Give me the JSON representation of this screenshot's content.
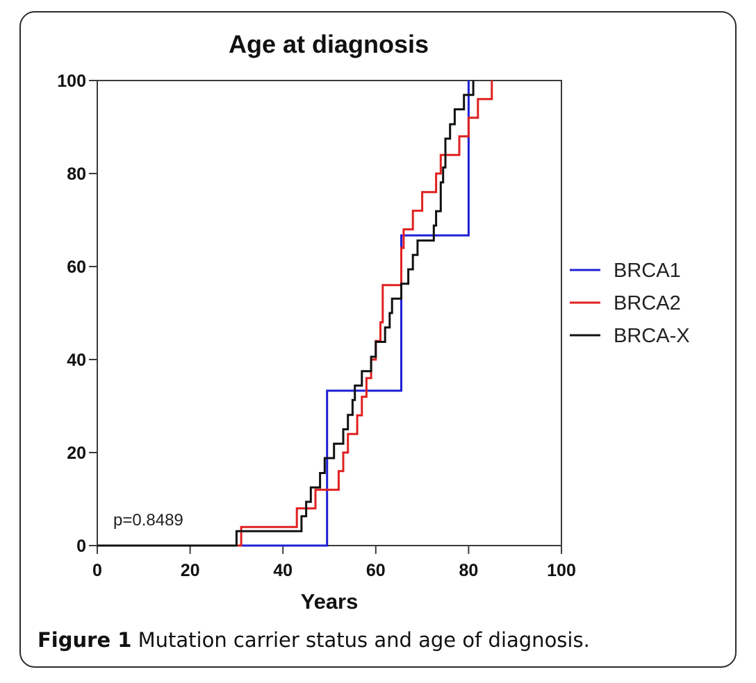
{
  "chart_data": {
    "type": "line",
    "title": "Age at diagnosis",
    "xlabel": "Years",
    "ylabel": "",
    "xlim": [
      0,
      100
    ],
    "ylim": [
      0,
      100
    ],
    "xticks": [
      "0",
      "20",
      "40",
      "60",
      "80",
      "100"
    ],
    "yticks": [
      "0",
      "20",
      "40",
      "60",
      "80",
      "100"
    ],
    "annotation": "p=0.8489",
    "legend_position": "right",
    "grid": false,
    "series": [
      {
        "name": "BRCA1",
        "color": "#1f1fd6",
        "step": true,
        "points": [
          [
            0,
            0
          ],
          [
            49.5,
            0
          ],
          [
            49.5,
            33.3
          ],
          [
            65.5,
            33.3
          ],
          [
            65.5,
            66.7
          ],
          [
            80,
            66.7
          ],
          [
            80,
            100
          ]
        ]
      },
      {
        "name": "BRCA2",
        "color": "#e02020",
        "step": true,
        "points": [
          [
            0,
            0
          ],
          [
            31,
            0
          ],
          [
            31,
            4
          ],
          [
            43,
            4
          ],
          [
            43,
            8
          ],
          [
            47,
            8
          ],
          [
            47,
            12
          ],
          [
            52,
            12
          ],
          [
            52,
            16
          ],
          [
            53,
            16
          ],
          [
            53,
            20
          ],
          [
            54,
            20
          ],
          [
            54,
            24
          ],
          [
            56,
            24
          ],
          [
            56,
            28
          ],
          [
            57,
            28
          ],
          [
            57,
            32
          ],
          [
            58,
            32
          ],
          [
            58,
            36
          ],
          [
            59,
            36
          ],
          [
            59,
            40
          ],
          [
            60,
            40
          ],
          [
            60,
            44
          ],
          [
            61,
            44
          ],
          [
            61,
            48
          ],
          [
            61.5,
            48
          ],
          [
            61.5,
            56
          ],
          [
            65.5,
            56
          ],
          [
            65.5,
            64
          ],
          [
            66,
            64
          ],
          [
            66,
            68
          ],
          [
            68,
            68
          ],
          [
            68,
            72
          ],
          [
            70,
            72
          ],
          [
            70,
            76
          ],
          [
            73,
            76
          ],
          [
            73,
            80
          ],
          [
            74,
            80
          ],
          [
            74,
            84
          ],
          [
            78,
            84
          ],
          [
            78,
            88
          ],
          [
            80,
            88
          ],
          [
            80,
            92
          ],
          [
            82,
            92
          ],
          [
            82,
            96
          ],
          [
            85,
            96
          ],
          [
            85,
            100
          ]
        ]
      },
      {
        "name": "BRCA-X",
        "color": "#111111",
        "step": true,
        "points": [
          [
            0,
            0
          ],
          [
            30,
            0
          ],
          [
            30,
            3.1
          ],
          [
            42,
            3.1
          ],
          [
            42,
            3.1
          ],
          [
            44,
            3.1
          ],
          [
            44,
            6.3
          ],
          [
            45,
            6.3
          ],
          [
            45,
            9.4
          ],
          [
            46,
            9.4
          ],
          [
            46,
            12.5
          ],
          [
            48,
            12.5
          ],
          [
            48,
            15.6
          ],
          [
            49,
            15.6
          ],
          [
            49,
            18.8
          ],
          [
            51,
            18.8
          ],
          [
            51,
            21.9
          ],
          [
            53,
            21.9
          ],
          [
            53,
            25
          ],
          [
            54,
            25
          ],
          [
            54,
            28.1
          ],
          [
            55,
            28.1
          ],
          [
            55,
            31.3
          ],
          [
            55.5,
            31.3
          ],
          [
            55.5,
            34.4
          ],
          [
            57,
            34.4
          ],
          [
            57,
            37.5
          ],
          [
            59,
            37.5
          ],
          [
            59,
            40.6
          ],
          [
            60,
            40.6
          ],
          [
            60,
            43.8
          ],
          [
            62,
            43.8
          ],
          [
            62,
            46.9
          ],
          [
            63,
            46.9
          ],
          [
            63,
            50
          ],
          [
            63.5,
            50
          ],
          [
            63.5,
            53.1
          ],
          [
            65.5,
            53.1
          ],
          [
            65.5,
            56.3
          ],
          [
            67,
            56.3
          ],
          [
            67,
            59.4
          ],
          [
            68,
            59.4
          ],
          [
            68,
            62.5
          ],
          [
            69,
            62.5
          ],
          [
            69,
            65.6
          ],
          [
            72.5,
            65.6
          ],
          [
            72.5,
            68.8
          ],
          [
            73,
            68.8
          ],
          [
            73,
            71.9
          ],
          [
            74,
            71.9
          ],
          [
            74,
            78.1
          ],
          [
            74.5,
            78.1
          ],
          [
            74.5,
            81.3
          ],
          [
            75,
            81.3
          ],
          [
            75,
            87.5
          ],
          [
            76,
            87.5
          ],
          [
            76,
            90.6
          ],
          [
            77,
            90.6
          ],
          [
            77,
            93.8
          ],
          [
            79,
            93.8
          ],
          [
            79,
            96.9
          ],
          [
            81,
            96.9
          ],
          [
            81,
            100
          ]
        ]
      }
    ]
  },
  "caption": {
    "label": "Figure 1",
    "text": " Mutation carrier status and age of diagnosis."
  }
}
